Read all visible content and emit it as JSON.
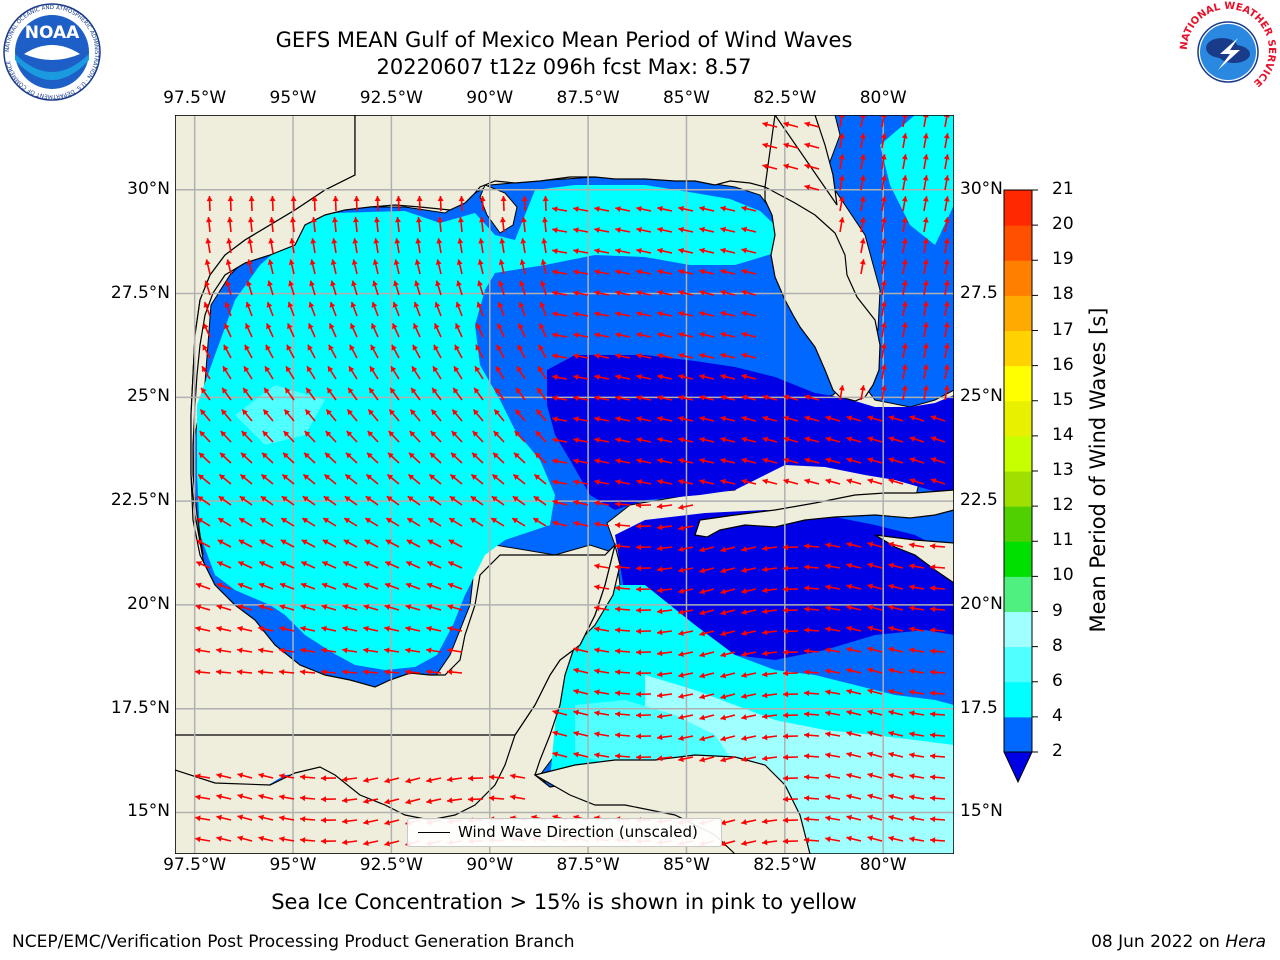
{
  "title": {
    "line1": "GEFS MEAN Gulf of Mexico Mean Period of Wind Waves",
    "line2": "20220607 t12z 096h fcst   Max: 8.57"
  },
  "logos": {
    "left": {
      "name": "noaa-logo",
      "text": "NOAA",
      "ring_text": "NATIONAL OCEANIC AND ATMOSPHERIC ADMINISTRATION · U.S. DEPARTMENT OF COMMERCE"
    },
    "right": {
      "name": "nws-logo",
      "ring_text": "NATIONAL WEATHER SERVICE"
    }
  },
  "map": {
    "lon_ticks": [
      "97.5°W",
      "95°W",
      "92.5°W",
      "90°W",
      "87.5°W",
      "85°W",
      "82.5°W",
      "80°W"
    ],
    "lat_ticks": [
      "30°N",
      "27.5°N",
      "25°N",
      "22.5°N",
      "20°N",
      "17.5°N",
      "15°N"
    ],
    "lat_ticks_right": [
      "30°N",
      "27.5",
      "25°N",
      "22.5",
      "20°N",
      "17.5",
      "15°N"
    ],
    "lon_range": [
      -98,
      -78.2
    ],
    "lat_range": [
      14,
      31.8
    ],
    "colors": {
      "land": "#efeddc",
      "period_2_4": "#0068ff",
      "period_lt_2": "#0000e6",
      "period_4_6": "#00ffff",
      "period_6_8": "#50ffff",
      "period_8_9": "#a0ffff",
      "arrow": "#ff0000",
      "grid": "#b0b0b0"
    }
  },
  "legend": {
    "label": "Wind Wave Direction (unscaled)"
  },
  "colorbar": {
    "label": "Mean Period of Wind Waves [s]",
    "ticks": [
      "2",
      "4",
      "6",
      "8",
      "9",
      "10",
      "11",
      "12",
      "13",
      "14",
      "15",
      "16",
      "17",
      "18",
      "19",
      "20",
      "21"
    ],
    "colors": [
      "#0068ff",
      "#00ffff",
      "#50ffff",
      "#a0ffff",
      "#50f080",
      "#00e000",
      "#50d000",
      "#a0e000",
      "#c8ff00",
      "#e8f000",
      "#ffff00",
      "#ffd200",
      "#ffaa00",
      "#ff8000",
      "#ff5000",
      "#ff2800",
      "#ff0000"
    ],
    "under_color": "#0000e6"
  },
  "footer": {
    "note": "Sea Ice Concentration > 15% is shown in pink to yellow",
    "left": "NCEP/EMC/Verification Post Processing Product Generation Branch",
    "right_date": "08 Jun 2022 on ",
    "right_host": "Hera"
  }
}
